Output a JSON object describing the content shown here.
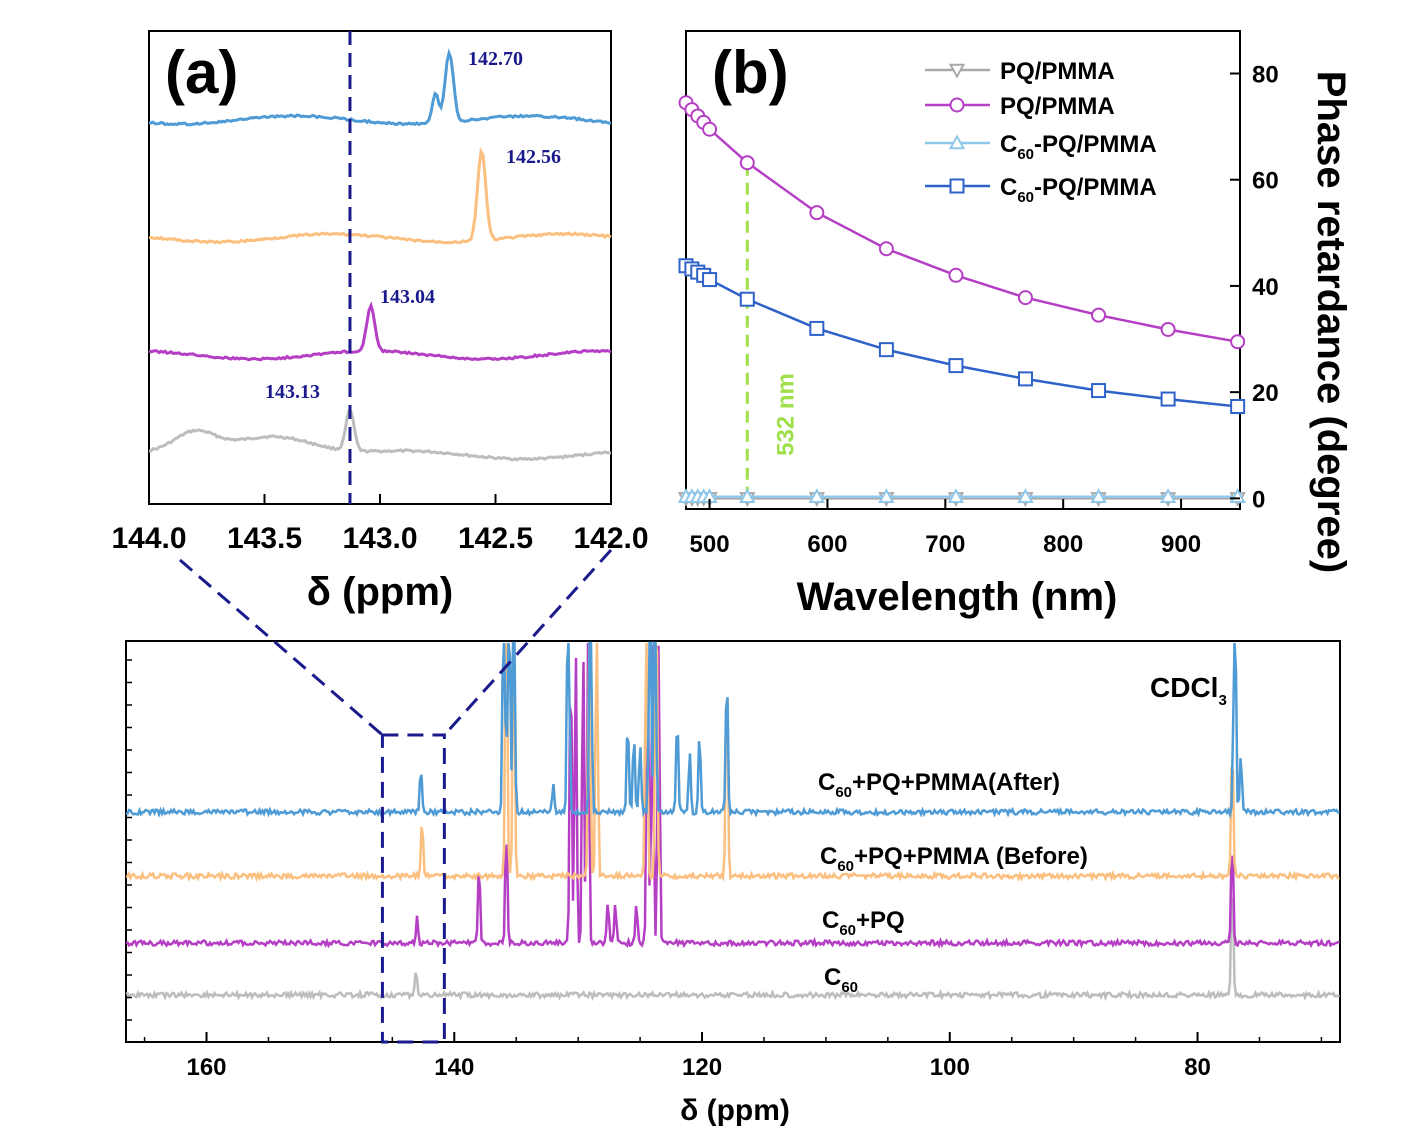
{
  "chart_data": [
    {
      "panel": "(a)",
      "type": "line",
      "xlabel": "δ (ppm)",
      "xlim": [
        144.0,
        142.0
      ],
      "xticks": [
        "144.0",
        "143.5",
        "143.0",
        "142.5",
        "142.0"
      ],
      "marker_line_x": 143.13,
      "series": [
        {
          "color": "#bdbdbd",
          "peak_x": 143.13,
          "peak_label": "143.13"
        },
        {
          "color": "#b53fc4",
          "peak_x": 143.04,
          "peak_label": "143.04"
        },
        {
          "color": "#fbbf7f",
          "peak_x": 142.56,
          "peak_label": "142.56"
        },
        {
          "color": "#4f9bd6",
          "peak_x": 142.7,
          "peak_label": "142.70"
        }
      ]
    },
    {
      "panel": "(b)",
      "type": "line",
      "xlabel": "Wavelength (nm)",
      "ylabel": "Phase retardance (degree)",
      "xlim": [
        480,
        950
      ],
      "ylim": [
        -2,
        88
      ],
      "xticks": [
        "500",
        "600",
        "700",
        "800",
        "900"
      ],
      "yticks": [
        "0",
        "20",
        "40",
        "60",
        "80"
      ],
      "annotation": "532 nm",
      "annotation_x": 532,
      "x": [
        480,
        485,
        490,
        495,
        500,
        532,
        591,
        650,
        709,
        768,
        830,
        889,
        948
      ],
      "series": [
        {
          "name": "PQ/PMMA",
          "name_sub": "",
          "name_rest": "",
          "marker": "triangle-down",
          "color": "#a9a9a9",
          "values": [
            0,
            0,
            0,
            0,
            0,
            0,
            0,
            0,
            0,
            0,
            0,
            0,
            0
          ]
        },
        {
          "name": "PQ/PMMA",
          "name_sub": "",
          "name_rest": "",
          "marker": "circle",
          "color": "#b53fc4",
          "values": [
            74.5,
            73.2,
            72.0,
            70.8,
            69.5,
            63.2,
            53.8,
            47.0,
            42.0,
            37.8,
            34.5,
            31.8,
            29.5
          ]
        },
        {
          "name": "C",
          "name_sub": "60",
          "name_rest": "-PQ/PMMA",
          "marker": "triangle-up",
          "color": "#8fc8ea",
          "values": [
            0.3,
            0.3,
            0.3,
            0.3,
            0.3,
            0.3,
            0.3,
            0.3,
            0.3,
            0.3,
            0.3,
            0.3,
            0.3
          ]
        },
        {
          "name": "C",
          "name_sub": "60",
          "name_rest": "-PQ/PMMA",
          "marker": "square",
          "color": "#2e62c9",
          "values": [
            43.8,
            43.2,
            42.6,
            42.0,
            41.2,
            37.5,
            32.0,
            28.0,
            25.0,
            22.5,
            20.3,
            18.7,
            17.3
          ]
        }
      ]
    },
    {
      "panel": "main",
      "type": "line",
      "xlabel": "δ  (ppm)",
      "xlim": [
        166.5,
        68.5
      ],
      "xticks": [
        "160",
        "140",
        "120",
        "100",
        "80"
      ],
      "solvent_label": "CDCl",
      "solvent_sub": "3",
      "solvent_peak_x": 77.2,
      "zoom_box": [
        145.8,
        140.8
      ],
      "series": [
        {
          "label": "C",
          "label_sub": "60",
          "label_rest": "",
          "color": "#bdbdbd",
          "peaks": [
            143.1,
            77.2
          ]
        },
        {
          "label": "C",
          "label_sub": "60",
          "label_rest": "+PQ",
          "color": "#b53fc4",
          "peaks": [
            143.0,
            138.0,
            135.8,
            130.6,
            130.2,
            129.6,
            129.2,
            127.6,
            127.0,
            125.3,
            124.4,
            124.0,
            123.5,
            77.2
          ]
        },
        {
          "label": "C",
          "label_sub": "60",
          "label_rest": "+PQ+PMMA (Before)",
          "color": "#fbbf7f",
          "peaks": [
            142.6,
            135.8,
            135.2,
            129.1,
            128.5,
            124.5,
            123.7,
            118.0,
            77.2
          ]
        },
        {
          "label": "C",
          "label_sub": "60",
          "label_rest": "+PQ+PMMA(After)",
          "color": "#4f9bd6",
          "peaks": [
            142.7,
            136.0,
            135.6,
            135.2,
            132.0,
            130.8,
            129.0,
            126.0,
            125.5,
            125.0,
            124.2,
            123.8,
            122.0,
            121.0,
            120.2,
            118.0,
            77.0,
            76.5
          ]
        }
      ]
    }
  ]
}
